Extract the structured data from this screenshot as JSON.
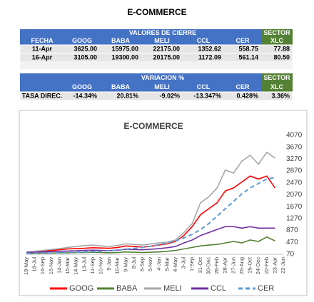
{
  "title": "E-COMMERCE",
  "table1": {
    "group_header": "VALORES DE CIERRE",
    "sector_header": "SECTOR",
    "columns": [
      "FECHA",
      "GOOG",
      "BABA",
      "MELI",
      "CCL",
      "CER",
      "XLC"
    ],
    "rows": [
      [
        "11-Apr",
        "3625.00",
        "15975.00",
        "22175.00",
        "1352.62",
        "558.75",
        "77.88"
      ],
      [
        "16-Apr",
        "3105.00",
        "19300.00",
        "20175.00",
        "1172.09",
        "561.14",
        "80.50"
      ]
    ]
  },
  "table2": {
    "group_header": "VARIACION %",
    "sector_header": "SECTOR",
    "columns": [
      "GOOG",
      "BABA",
      "MELI",
      "CCL",
      "CER",
      "XLC"
    ],
    "rows": [
      [
        "TASA DIREC.",
        "-14.34%",
        "20.81%",
        "-9.02%",
        "-13.347%",
        "0.428%",
        "3.36%"
      ]
    ]
  },
  "chart_data": {
    "type": "line",
    "title": "E-COMMERCE",
    "categories": [
      "19-May",
      "18-Jul",
      "16-Sep",
      "15-Nov",
      "14-Jan",
      "15-Mar",
      "14-May",
      "13-Jul",
      "11-Sep",
      "10-Nov",
      "9-Jan",
      "10-Mar",
      "9-May",
      "8-Jul",
      "6-Sep",
      "5-Nov",
      "4-Jan",
      "5-Mar",
      "4-May",
      "3-Jul",
      "1-Sep",
      "31-Oct",
      "30-Dec",
      "28-Feb",
      "28-Apr",
      "27-Jun",
      "26-Aug",
      "25-Oct",
      "24-Dec",
      "22-Feb",
      "23-Apr",
      "22-Jun"
    ],
    "series": [
      {
        "name": "GOOG",
        "color": "#ff0000",
        "values": [
          150,
          160,
          180,
          200,
          220,
          250,
          260,
          270,
          290,
          280,
          270,
          300,
          350,
          330,
          310,
          340,
          380,
          420,
          500,
          700,
          1000,
          1400,
          1600,
          1800,
          2200,
          2300,
          2500,
          2700,
          2600,
          2700,
          2300,
          null
        ]
      },
      {
        "name": "BABA",
        "color": "#548235",
        "values": [
          100,
          100,
          110,
          110,
          120,
          120,
          130,
          130,
          140,
          130,
          120,
          130,
          150,
          140,
          130,
          140,
          150,
          170,
          200,
          250,
          300,
          350,
          380,
          400,
          450,
          500,
          450,
          550,
          500,
          650,
          520,
          null
        ]
      },
      {
        "name": "MELI",
        "color": "#a6a6a6",
        "values": [
          150,
          170,
          200,
          230,
          260,
          300,
          330,
          360,
          380,
          350,
          330,
          370,
          420,
          400,
          380,
          420,
          450,
          480,
          550,
          800,
          1100,
          1800,
          2000,
          2300,
          2900,
          2800,
          3200,
          3400,
          3100,
          3500,
          3300,
          null
        ]
      },
      {
        "name": "CCL",
        "color": "#7030a0",
        "values": [
          130,
          140,
          150,
          160,
          170,
          180,
          190,
          200,
          210,
          200,
          190,
          210,
          240,
          230,
          220,
          240,
          260,
          290,
          330,
          450,
          550,
          700,
          800,
          900,
          1000,
          1000,
          950,
          1000,
          950,
          950,
          950,
          null
        ]
      },
      {
        "name": "CER",
        "color": "#5b9bd5",
        "dashed": true,
        "values": [
          100,
          105,
          110,
          115,
          120,
          130,
          140,
          150,
          160,
          175,
          190,
          210,
          240,
          270,
          300,
          340,
          390,
          450,
          520,
          620,
          740,
          900,
          1100,
          1350,
          1600,
          1850,
          2100,
          2300,
          2450,
          2600,
          2650,
          null
        ]
      }
    ],
    "ylim": [
      70,
      4070
    ],
    "yticks": [
      70,
      470,
      870,
      1270,
      1670,
      2070,
      2470,
      2870,
      3270,
      3670,
      4070
    ],
    "grid": false
  }
}
